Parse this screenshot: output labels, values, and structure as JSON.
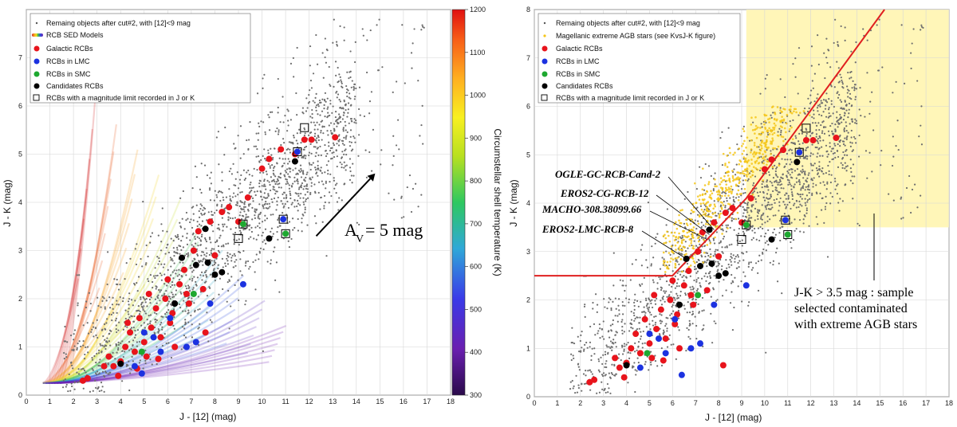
{
  "chart_data": [
    {
      "type": "scatter",
      "title": "",
      "xlabel": "J - [12] (mag)",
      "ylabel": "J - K (mag)",
      "xlim": [
        0,
        18
      ],
      "ylim": [
        0,
        8
      ],
      "xticks": [
        "0",
        "1",
        "2",
        "3",
        "4",
        "5",
        "6",
        "7",
        "8",
        "9",
        "10",
        "11",
        "12",
        "13",
        "14",
        "15",
        "16",
        "17",
        "18"
      ],
      "yticks": [
        "0",
        "1",
        "2",
        "3",
        "4",
        "5",
        "6",
        "7"
      ],
      "legend": [
        "Remaing objects after cut#2, with [12]<9 mag",
        "RCB SED Models",
        "Galactic RCBs",
        "RCBs in LMC",
        "RCBs in SMC",
        "Candidates RCBs",
        "RCBs with a magnitude limit recorded in J or K"
      ],
      "colorbar": {
        "label": "Circumstellar shell temperature (K)",
        "min": 300,
        "max": 1200,
        "ticks": [
          "300",
          "400",
          "500",
          "600",
          "700",
          "800",
          "900",
          "1000",
          "1100",
          "1200"
        ]
      },
      "annotation": {
        "text_main": "A",
        "text_sub": "V",
        "text_rest": "= 5 mag",
        "arrow_from": [
          12.3,
          3.3
        ],
        "arrow_to": [
          14.8,
          4.6
        ]
      },
      "series": [
        {
          "name": "Galactic RCBs",
          "color": "#e8141c",
          "points": [
            [
              2.4,
              0.3
            ],
            [
              2.6,
              0.35
            ],
            [
              3.5,
              0.8
            ],
            [
              3.7,
              0.6
            ],
            [
              4.0,
              0.7
            ],
            [
              4.2,
              1.0
            ],
            [
              4.4,
              1.3
            ],
            [
              4.6,
              0.9
            ],
            [
              4.8,
              1.6
            ],
            [
              5.0,
              1.1
            ],
            [
              5.1,
              0.8
            ],
            [
              5.3,
              1.4
            ],
            [
              5.5,
              1.8
            ],
            [
              5.7,
              1.2
            ],
            [
              5.9,
              2.0
            ],
            [
              6.1,
              1.5
            ],
            [
              6.3,
              1.0
            ],
            [
              6.5,
              2.3
            ],
            [
              6.7,
              2.6
            ],
            [
              6.9,
              1.9
            ],
            [
              7.1,
              3.0
            ],
            [
              7.3,
              3.4
            ],
            [
              7.5,
              2.2
            ],
            [
              7.8,
              3.6
            ],
            [
              8.0,
              2.9
            ],
            [
              8.3,
              3.8
            ],
            [
              8.6,
              3.9
            ],
            [
              9.0,
              3.6
            ],
            [
              9.4,
              4.1
            ],
            [
              10.0,
              4.7
            ],
            [
              10.3,
              4.9
            ],
            [
              10.8,
              5.1
            ],
            [
              11.4,
              5.0
            ],
            [
              11.8,
              5.3
            ],
            [
              12.1,
              5.3
            ],
            [
              13.1,
              5.35
            ],
            [
              3.9,
              0.4
            ],
            [
              4.7,
              0.55
            ],
            [
              5.6,
              0.75
            ],
            [
              6.2,
              1.7
            ],
            [
              6.8,
              2.1
            ],
            [
              7.6,
              1.3
            ],
            [
              3.3,
              0.6
            ],
            [
              5.2,
              2.1
            ],
            [
              6.0,
              2.4
            ],
            [
              4.3,
              1.5
            ]
          ]
        },
        {
          "name": "RCBs in LMC",
          "color": "#1c32e0",
          "points": [
            [
              4.6,
              0.6
            ],
            [
              5.0,
              1.3
            ],
            [
              5.7,
              0.9
            ],
            [
              6.1,
              1.6
            ],
            [
              6.8,
              1.0
            ],
            [
              7.2,
              1.1
            ],
            [
              7.8,
              1.9
            ],
            [
              9.2,
              2.3
            ],
            [
              10.9,
              3.65
            ],
            [
              11.5,
              5.05
            ],
            [
              5.4,
              1.2
            ],
            [
              4.9,
              0.45
            ]
          ]
        },
        {
          "name": "RCBs in SMC",
          "color": "#1ea830",
          "points": [
            [
              4.9,
              0.9
            ],
            [
              7.1,
              2.1
            ],
            [
              9.2,
              3.55
            ],
            [
              11.0,
              3.35
            ]
          ]
        },
        {
          "name": "Candidates RCBs",
          "color": "#000000",
          "points": [
            [
              4.0,
              0.65
            ],
            [
              6.3,
              1.9
            ],
            [
              6.6,
              2.85
            ],
            [
              7.2,
              2.7
            ],
            [
              7.6,
              3.45
            ],
            [
              7.7,
              2.75
            ],
            [
              8.3,
              2.55
            ],
            [
              10.3,
              3.25
            ],
            [
              11.4,
              4.85
            ],
            [
              8.0,
              2.5
            ]
          ]
        },
        {
          "name": "RCBs with a magnitude limit recorded in J or K",
          "color": "#000000",
          "points": [
            [
              9.0,
              3.25
            ],
            [
              9.2,
              3.55
            ],
            [
              10.9,
              3.65
            ],
            [
              11.0,
              3.35
            ],
            [
              11.5,
              5.05
            ],
            [
              11.8,
              5.55
            ]
          ]
        }
      ]
    },
    {
      "type": "scatter",
      "title": "",
      "xlabel": "J - [12] (mag)",
      "ylabel": "J - K (mag)",
      "xlim": [
        0,
        18
      ],
      "ylim": [
        0,
        8
      ],
      "xticks": [
        "0",
        "1",
        "2",
        "3",
        "4",
        "5",
        "6",
        "7",
        "8",
        "9",
        "10",
        "11",
        "12",
        "13",
        "14",
        "15",
        "16",
        "17",
        "18"
      ],
      "yticks": [
        "0",
        "1",
        "2",
        "3",
        "4",
        "5",
        "6",
        "7",
        "8"
      ],
      "legend": [
        "Remaing objects after cut#2, with [12]<9 mag",
        "Magellanic extreme AGB stars (see KvsJ-K figure)",
        "Galactic RCBs",
        "RCBs in LMC",
        "RCBs in SMC",
        "Candidates RCBs",
        "RCBs with a magnitude limit recorded in J or K"
      ],
      "selection_cut": {
        "polyline": [
          [
            0,
            2.5
          ],
          [
            6.0,
            2.5
          ],
          [
            9.2,
            4.1
          ],
          [
            15.2,
            8.0
          ]
        ],
        "color": "#e02020"
      },
      "shaded_region": {
        "x_from": 9.2,
        "y_from": 3.5,
        "color": "#fff6b8"
      },
      "labeled_objects": [
        {
          "name": "OGLE-GC-RCB-Cand-2",
          "point": [
            7.8,
            3.45
          ]
        },
        {
          "name": "EROS2-CG-RCB-12",
          "point": [
            7.6,
            3.35
          ]
        },
        {
          "name": "MACHO-308.38099.66",
          "point": [
            7.5,
            3.25
          ]
        },
        {
          "name": "EROS2-LMC-RCB-8",
          "point": [
            6.6,
            2.85
          ]
        }
      ],
      "annotation": {
        "text": "J-K > 3.5 mag :  sample selected contaminated with extreme AGB stars",
        "lines": [
          "J-K > 3.5 mag :  sample",
          "selected contaminated",
          "with extreme AGB stars"
        ]
      },
      "series": [
        {
          "name": "Galactic RCBs",
          "color": "#e8141c",
          "points": [
            [
              2.4,
              0.3
            ],
            [
              2.6,
              0.35
            ],
            [
              3.5,
              0.8
            ],
            [
              3.7,
              0.6
            ],
            [
              4.0,
              0.7
            ],
            [
              4.2,
              1.0
            ],
            [
              4.4,
              1.3
            ],
            [
              4.6,
              0.9
            ],
            [
              4.8,
              1.6
            ],
            [
              5.0,
              1.1
            ],
            [
              5.1,
              0.8
            ],
            [
              5.3,
              1.4
            ],
            [
              5.5,
              1.8
            ],
            [
              5.7,
              1.2
            ],
            [
              5.9,
              2.0
            ],
            [
              6.1,
              1.5
            ],
            [
              6.3,
              1.0
            ],
            [
              6.5,
              2.3
            ],
            [
              6.7,
              2.6
            ],
            [
              6.9,
              1.9
            ],
            [
              7.1,
              3.0
            ],
            [
              7.3,
              3.4
            ],
            [
              7.5,
              2.2
            ],
            [
              7.8,
              3.6
            ],
            [
              8.0,
              2.9
            ],
            [
              8.3,
              3.8
            ],
            [
              8.6,
              3.9
            ],
            [
              9.0,
              3.6
            ],
            [
              9.4,
              4.1
            ],
            [
              10.0,
              4.7
            ],
            [
              10.3,
              4.9
            ],
            [
              10.8,
              5.1
            ],
            [
              11.8,
              5.3
            ],
            [
              12.1,
              5.3
            ],
            [
              13.1,
              5.35
            ],
            [
              8.2,
              0.65
            ],
            [
              3.9,
              0.4
            ],
            [
              5.6,
              0.75
            ],
            [
              6.2,
              1.7
            ],
            [
              6.8,
              2.1
            ],
            [
              5.2,
              2.1
            ],
            [
              6.0,
              2.4
            ]
          ]
        },
        {
          "name": "RCBs in LMC",
          "color": "#1c32e0",
          "points": [
            [
              4.6,
              0.6
            ],
            [
              5.0,
              1.3
            ],
            [
              5.7,
              0.9
            ],
            [
              6.1,
              1.6
            ],
            [
              6.8,
              1.0
            ],
            [
              7.2,
              1.1
            ],
            [
              7.8,
              1.9
            ],
            [
              9.2,
              2.3
            ],
            [
              10.9,
              3.65
            ],
            [
              11.5,
              5.05
            ],
            [
              5.4,
              1.2
            ],
            [
              6.4,
              0.45
            ]
          ]
        },
        {
          "name": "RCBs in SMC",
          "color": "#1ea830",
          "points": [
            [
              4.9,
              0.9
            ],
            [
              7.1,
              2.1
            ],
            [
              9.2,
              3.55
            ],
            [
              11.0,
              3.35
            ]
          ]
        },
        {
          "name": "Candidates RCBs",
          "color": "#000000",
          "points": [
            [
              4.0,
              0.65
            ],
            [
              6.3,
              1.9
            ],
            [
              6.6,
              2.85
            ],
            [
              7.2,
              2.7
            ],
            [
              7.6,
              3.45
            ],
            [
              7.7,
              2.75
            ],
            [
              8.3,
              2.55
            ],
            [
              10.3,
              3.25
            ],
            [
              11.4,
              4.85
            ],
            [
              8.0,
              2.5
            ]
          ]
        },
        {
          "name": "RCBs with a magnitude limit recorded in J or K",
          "color": "#000000",
          "points": [
            [
              9.0,
              3.25
            ],
            [
              9.2,
              3.55
            ],
            [
              10.9,
              3.65
            ],
            [
              11.0,
              3.35
            ],
            [
              11.5,
              5.05
            ],
            [
              11.8,
              5.55
            ]
          ]
        }
      ]
    }
  ]
}
